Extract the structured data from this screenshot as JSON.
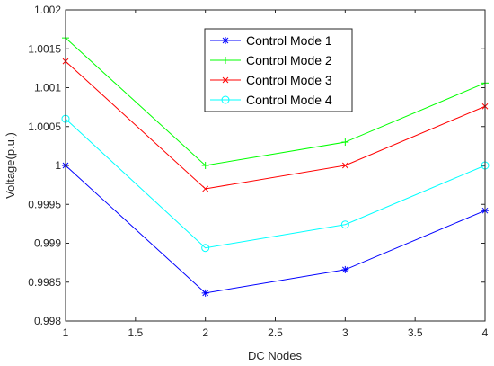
{
  "chart_data": {
    "type": "line",
    "title": "",
    "xlabel": "DC Nodes",
    "ylabel": "Voltage(p.u.)",
    "xlim": [
      1,
      4
    ],
    "ylim": [
      0.998,
      1.002
    ],
    "x_ticks": [
      1,
      1.5,
      2,
      2.5,
      3,
      3.5,
      4
    ],
    "x_tick_labels": [
      "1",
      "1.5",
      "2",
      "2.5",
      "3",
      "3.5",
      "4"
    ],
    "y_ticks": [
      0.998,
      0.9985,
      0.999,
      0.9995,
      1.0,
      1.0005,
      1.001,
      1.0015,
      1.002
    ],
    "y_tick_labels": [
      "0.998",
      "0.9985",
      "0.999",
      "0.9995",
      "1",
      "1.0005",
      "1.001",
      "1.0015",
      "1.002"
    ],
    "grid": false,
    "legend_position": "top-center",
    "x": [
      1,
      2,
      3,
      4
    ],
    "series": [
      {
        "name": "Control Mode 1",
        "values": [
          1.0,
          0.99836,
          0.99866,
          0.99942
        ],
        "color": "#0000ff",
        "marker": "asterisk"
      },
      {
        "name": "Control Mode 2",
        "values": [
          1.00164,
          1.0,
          1.0003,
          1.00106
        ],
        "color": "#00ff00",
        "marker": "plus"
      },
      {
        "name": "Control Mode 3",
        "values": [
          1.00134,
          0.9997,
          1.0,
          1.00076
        ],
        "color": "#ff0000",
        "marker": "x"
      },
      {
        "name": "Control Mode 4",
        "values": [
          1.0006,
          0.99894,
          0.99924,
          1.0
        ],
        "color": "#00ffff",
        "marker": "circle"
      }
    ]
  }
}
